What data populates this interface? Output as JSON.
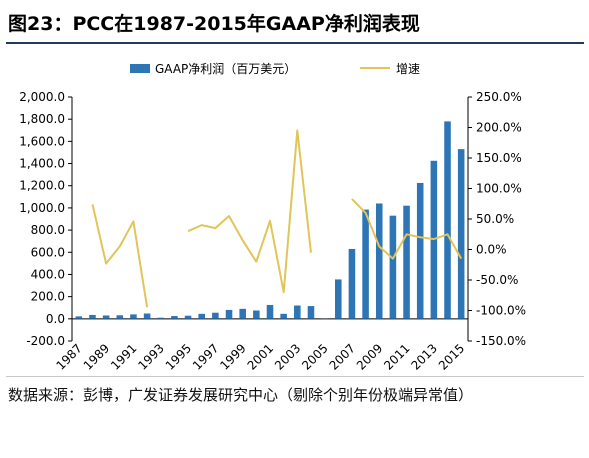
{
  "title": "图23：PCC在1987-2015年GAAP净利润表现",
  "source_note": "数据来源：彭博，广发证券发展研究中心（剔除个别年份极端异常值）",
  "colors": {
    "bar": "#2e75b6",
    "line": "#e0c55a",
    "title_rule": "#1f3864"
  },
  "chart_data": {
    "type": "bar+line",
    "title": "",
    "categories": [
      "1987",
      "1988",
      "1989",
      "1990",
      "1991",
      "1992",
      "1993",
      "1994",
      "1995",
      "1996",
      "1997",
      "1998",
      "1999",
      "2000",
      "2001",
      "2002",
      "2003",
      "2004",
      "2005",
      "2006",
      "2007",
      "2008",
      "2009",
      "2010",
      "2011",
      "2012",
      "2013",
      "2014",
      "2015"
    ],
    "x_tick_labels": [
      "1987",
      "1989",
      "1991",
      "1993",
      "1995",
      "1997",
      "1999",
      "2001",
      "2003",
      "2005",
      "2007",
      "2009",
      "2011",
      "2013",
      "2015"
    ],
    "series": [
      {
        "name": "GAAP净利润（百万美元）",
        "type": "bar",
        "axis": "left",
        "values": [
          22,
          35,
          30,
          32,
          40,
          48,
          10,
          25,
          28,
          45,
          55,
          80,
          90,
          75,
          125,
          45,
          120,
          115,
          -5,
          355,
          630,
          985,
          1040,
          930,
          1020,
          1225,
          1425,
          1780,
          1530
        ]
      },
      {
        "name": "增速",
        "type": "line",
        "axis": "right",
        "values": [
          null,
          74,
          -23,
          5,
          46,
          -95,
          null,
          null,
          30,
          40,
          35,
          55,
          15,
          -20,
          47,
          -70,
          195,
          -5,
          null,
          null,
          83,
          60,
          5,
          -15,
          25,
          20,
          17,
          25,
          -15
        ]
      }
    ],
    "y_left": {
      "min": -200,
      "max": 2000,
      "step": 200,
      "tick_labels": [
        "-200.0",
        "0.0",
        "200.0",
        "400.0",
        "600.0",
        "800.0",
        "1,000.0",
        "1,200.0",
        "1,400.0",
        "1,600.0",
        "1,800.0",
        "2,000.0"
      ]
    },
    "y_right": {
      "min": -150,
      "max": 250,
      "step": 50,
      "tick_labels": [
        "-150.0%",
        "-100.0%",
        "-50.0%",
        "0.0%",
        "50.0%",
        "100.0%",
        "150.0%",
        "200.0%",
        "250.0%"
      ]
    },
    "legend": {
      "placement": "top"
    },
    "grid": false
  }
}
